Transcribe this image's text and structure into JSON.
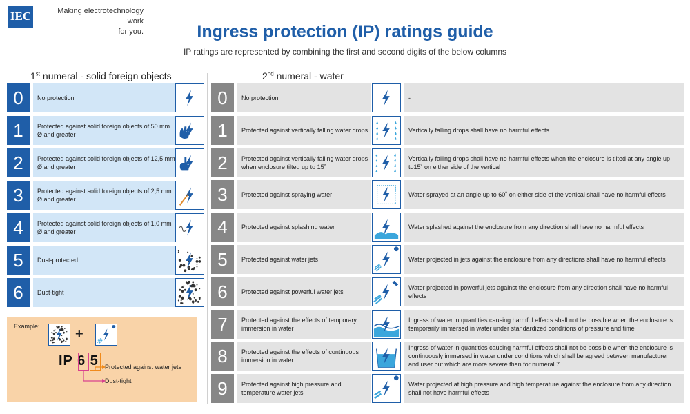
{
  "header": {
    "logo_text": "IEC",
    "tagline": "Making  electrotechnology work\nfor you.",
    "title": "Ingress protection (IP) ratings guide",
    "subtitle": "IP ratings are represented by combining the first and second digits of the below columns"
  },
  "solids": {
    "heading_main": "1",
    "heading_sup": "st",
    "heading_rest": " numeral - solid foreign objects",
    "rows": [
      {
        "num": "0",
        "text": "No protection",
        "icon": "lightning-icon"
      },
      {
        "num": "1",
        "text": "Protected against solid foreign objects of 50 mm Ø and greater",
        "icon": "hand-icon"
      },
      {
        "num": "2",
        "text": "Protected against solid foreign objects of 12,5 mm Ø and greater",
        "icon": "finger-icon"
      },
      {
        "num": "3",
        "text": "Protected against solid foreign objects of 2,5 mm Ø and greater",
        "icon": "tool-icon"
      },
      {
        "num": "4",
        "text": "Protected against solid foreign objects of 1,0 mm Ø and greater",
        "icon": "wire-icon"
      },
      {
        "num": "5",
        "text": "Dust-protected",
        "icon": "dust-icon"
      },
      {
        "num": "6",
        "text": "Dust-tight",
        "icon": "dust-tight-icon"
      }
    ]
  },
  "water": {
    "heading_main": "2",
    "heading_sup": "nd",
    "heading_rest": " numeral - water",
    "rows": [
      {
        "num": "0",
        "text": "No protection",
        "detail": "-",
        "icon": "lightning-icon"
      },
      {
        "num": "1",
        "text": "Protected against vertically falling water drops",
        "detail": "Vertically falling drops shall have no harmful effects",
        "icon": "vertical-drops-icon"
      },
      {
        "num": "2",
        "text": "Protected against vertically falling water drops when enclosure tilted up to 15˚",
        "detail": "Vertically falling drops shall have no harmful effects when the enclosure is tilted at any angle up to15˚ on either side of the vertical",
        "icon": "tilted-drops-icon"
      },
      {
        "num": "3",
        "text": "Protected against spraying water",
        "detail": "Water sprayed at an angle up to 60˚ on either side of the vertical shall have no harmful effects",
        "icon": "spray-icon"
      },
      {
        "num": "4",
        "text": "Protected against splashing water",
        "detail": "Water splashed against the enclosure from any direction shall have no harmful effects",
        "icon": "splash-icon"
      },
      {
        "num": "5",
        "text": "Protected against water jets",
        "detail": "Water projected in jets against the enclosure from any directions shall have no harmful effects",
        "icon": "water-jet-icon"
      },
      {
        "num": "6",
        "text": "Protected against powerful water jets",
        "detail": "Water projected in powerful jets against the enclosure from any direction shall have no harmful effects",
        "icon": "powerful-jet-icon"
      },
      {
        "num": "7",
        "text": "Protected against the effects of temporary immersion in water",
        "detail": "Ingress of water in quantities causing harmful effects shall not be possible when the enclosure is temporarily immersed in water under standardized conditions of pressure and time",
        "icon": "temporary-immersion-icon"
      },
      {
        "num": "8",
        "text": "Protected against the effects of continuous immersion in water",
        "detail": "Ingress of water in quantities causing harmful effects shall not be possible when the enclosure is continuously immersed in water under conditions which shall be agreed between manufacturer and user but which are more severe than for numeral 7",
        "icon": "continuous-immersion-icon"
      },
      {
        "num": "9",
        "text": "Protected against high pressure and temperature water jets",
        "detail": "Water projected at high pressure and high temperature against the enclosure from any direction shall not have harmful effects",
        "icon": "high-pressure-jet-icon"
      }
    ]
  },
  "example": {
    "label": "Example:",
    "plus": "+",
    "code_prefix": "IP ",
    "digit1": "6",
    "digit2": "5",
    "note_water": "Protected against water jets",
    "note_dust": "Dust-tight"
  },
  "colors": {
    "brand_blue": "#1f5ea8",
    "light_blue": "#d2e6f7",
    "grey_number": "#878787",
    "grey_panel": "#e3e3e3",
    "example_bg": "#f9d3a8",
    "pink": "#d9418e",
    "orange": "#f08a1c"
  }
}
